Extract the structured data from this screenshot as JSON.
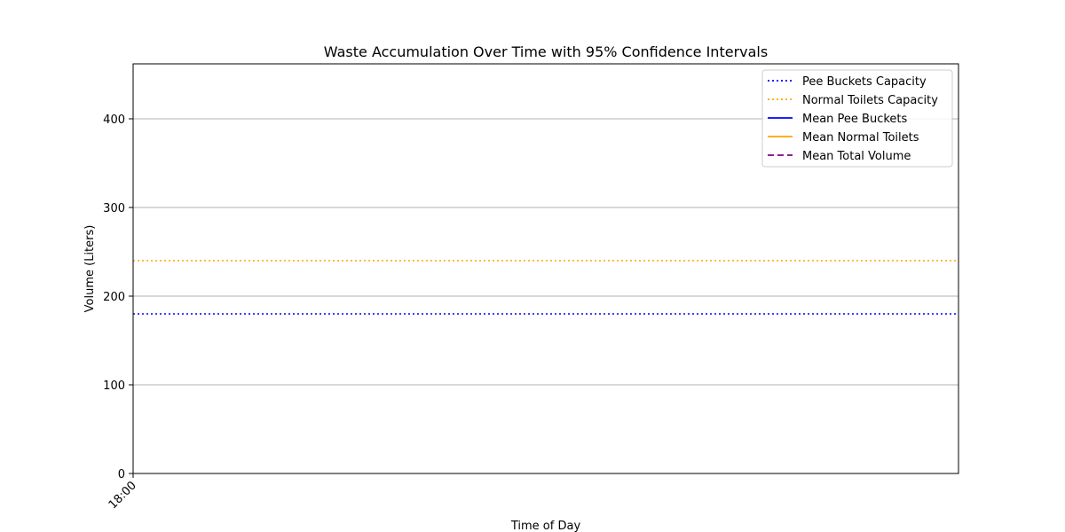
{
  "chart_data": {
    "type": "line",
    "title": "Waste Accumulation Over Time with 95% Confidence Intervals",
    "xlabel": "Time of Day",
    "ylabel": "Volume (Liters)",
    "x_tick_labels": [
      "18:00"
    ],
    "y_ticks": [
      0,
      100,
      200,
      300,
      400
    ],
    "ylim": [
      0,
      462
    ],
    "grid": "y-major",
    "legend_position": "top-right",
    "series": [
      {
        "name": "Pee Buckets Capacity",
        "style": "dotted",
        "color": "#0000ff",
        "values": [
          180,
          180
        ]
      },
      {
        "name": "Normal Toilets Capacity",
        "style": "dotted",
        "color": "#ffa500",
        "values": [
          240,
          240
        ]
      },
      {
        "name": "Mean Pee Buckets",
        "style": "solid",
        "color": "#0000ff",
        "values": []
      },
      {
        "name": "Mean Normal Toilets",
        "style": "solid",
        "color": "#ffa500",
        "values": []
      },
      {
        "name": "Mean Total Volume",
        "style": "dashed",
        "color": "#800080",
        "values": []
      }
    ]
  }
}
